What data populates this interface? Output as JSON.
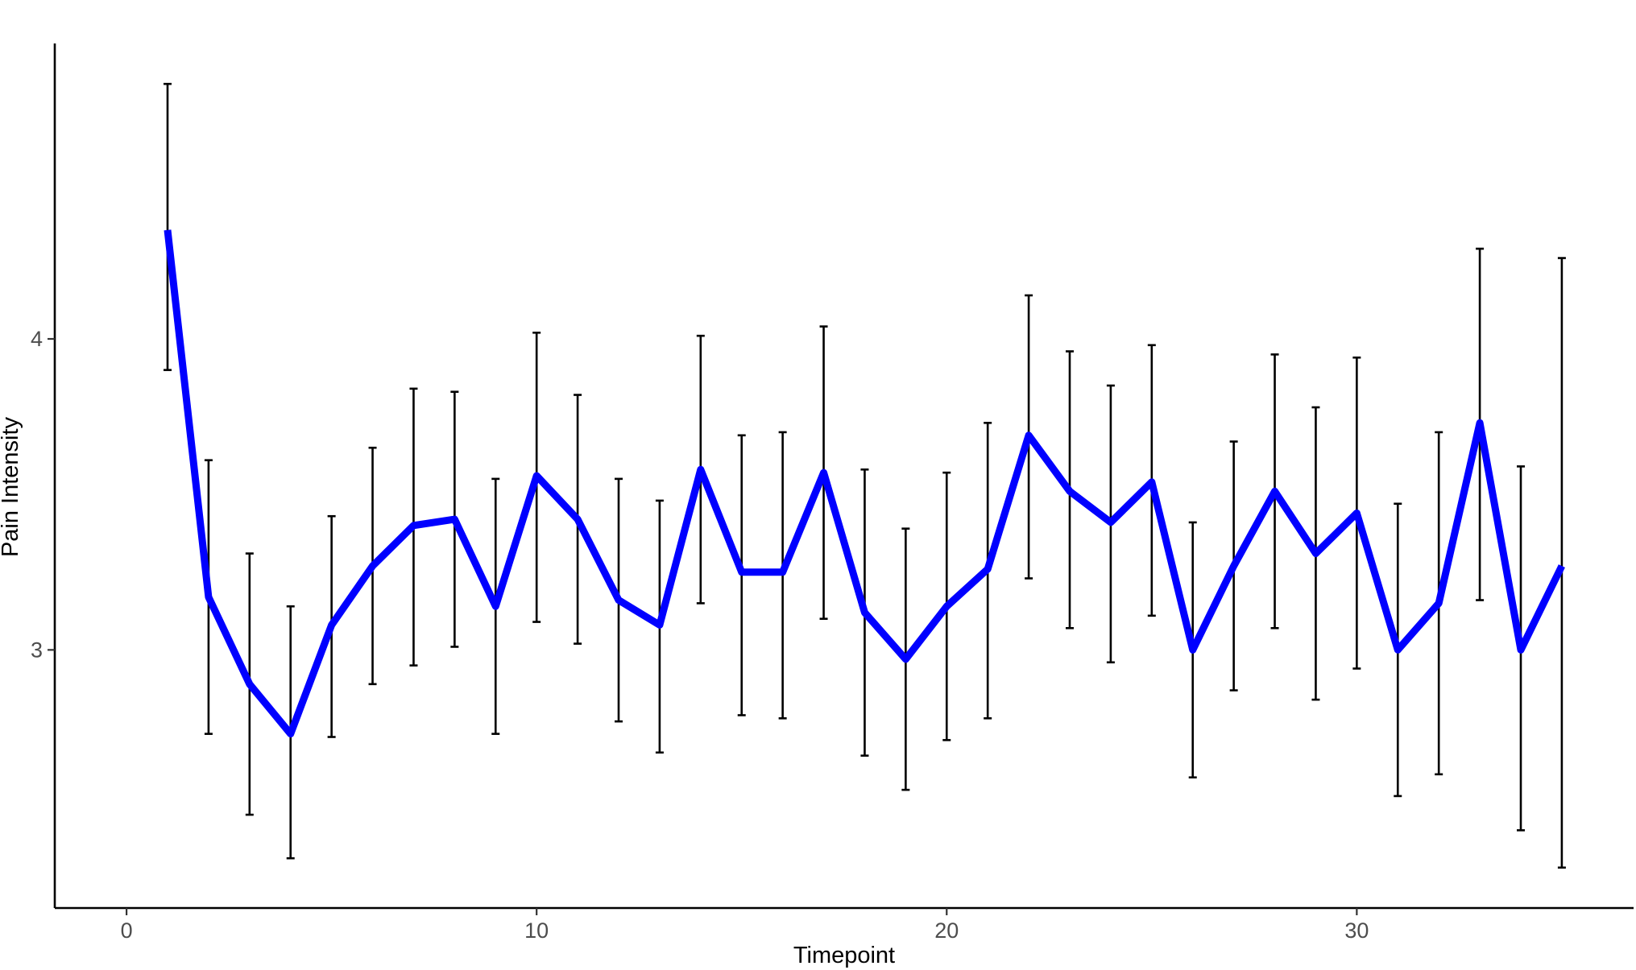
{
  "chart_data": {
    "type": "line",
    "title": "",
    "xlabel": "Timepoint",
    "ylabel": "Pain Intensity",
    "xlim": [
      -1.75,
      36.75
    ],
    "ylim": [
      2.17,
      4.95
    ],
    "x_ticks": [
      0,
      10,
      20,
      30
    ],
    "y_ticks": [
      3,
      4
    ],
    "grid": false,
    "legend": "none",
    "colors": {
      "line": "#0000ff",
      "error_bars": "#000000",
      "axis": "#000000",
      "tick_text": "#4d4d4d"
    },
    "series": [
      {
        "x": [
          1,
          2,
          3,
          4,
          5,
          6,
          7,
          8,
          9,
          10,
          11,
          12,
          13,
          14,
          15,
          16,
          17,
          18,
          19,
          20,
          21,
          22,
          23,
          24,
          25,
          26,
          27,
          28,
          29,
          30,
          31,
          32,
          33,
          34,
          35
        ],
        "y": [
          4.35,
          3.17,
          2.89,
          2.73,
          3.08,
          3.27,
          3.4,
          3.42,
          3.14,
          3.56,
          3.42,
          3.16,
          3.08,
          3.58,
          3.25,
          3.25,
          3.57,
          3.12,
          2.97,
          3.14,
          3.26,
          3.69,
          3.51,
          3.41,
          3.54,
          3.0,
          3.27,
          3.51,
          3.31,
          3.44,
          3.0,
          3.15,
          3.73,
          3.0,
          3.27
        ],
        "lower": [
          3.9,
          2.73,
          2.47,
          2.33,
          2.72,
          2.89,
          2.95,
          3.01,
          2.73,
          3.09,
          3.02,
          2.77,
          2.67,
          3.15,
          2.79,
          2.78,
          3.1,
          2.66,
          2.55,
          2.71,
          2.78,
          3.23,
          3.07,
          2.96,
          3.11,
          2.59,
          2.87,
          3.07,
          2.84,
          2.94,
          2.53,
          2.6,
          3.16,
          2.42,
          2.3
        ],
        "upper": [
          4.82,
          3.61,
          3.31,
          3.14,
          3.43,
          3.65,
          3.84,
          3.83,
          3.55,
          4.02,
          3.82,
          3.55,
          3.48,
          4.01,
          3.69,
          3.7,
          4.04,
          3.58,
          3.39,
          3.57,
          3.73,
          4.14,
          3.96,
          3.85,
          3.98,
          3.41,
          3.67,
          3.95,
          3.78,
          3.94,
          3.47,
          3.7,
          4.29,
          3.59,
          4.26
        ]
      }
    ]
  }
}
